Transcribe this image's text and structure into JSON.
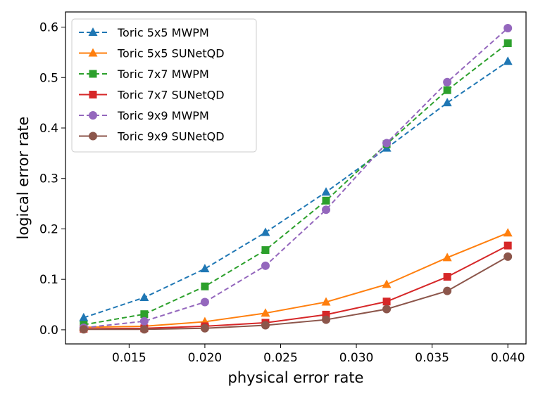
{
  "chart_data": {
    "type": "line",
    "title": "",
    "xlabel": "physical error rate",
    "ylabel": "logical error rate",
    "xlim": [
      0.0108,
      0.0412
    ],
    "ylim": [
      -0.028,
      0.63
    ],
    "x": [
      0.012,
      0.016,
      0.02,
      0.024,
      0.028,
      0.032,
      0.036,
      0.04
    ],
    "x_ticks": [
      0.015,
      0.02,
      0.025,
      0.03,
      0.035,
      0.04
    ],
    "x_tick_labels": [
      "0.015",
      "0.020",
      "0.025",
      "0.030",
      "0.035",
      "0.040"
    ],
    "y_ticks": [
      0.0,
      0.1,
      0.2,
      0.3,
      0.4,
      0.5,
      0.6
    ],
    "y_tick_labels": [
      "0.0",
      "0.1",
      "0.2",
      "0.3",
      "0.4",
      "0.5",
      "0.6"
    ],
    "legend_position": "top-left",
    "series": [
      {
        "name": "Toric 5x5 MWPM",
        "color": "#1f77b4",
        "dashed": true,
        "marker": "triangle",
        "values": [
          0.024,
          0.064,
          0.121,
          0.193,
          0.273,
          0.36,
          0.45,
          0.532
        ]
      },
      {
        "name": "Toric 5x5 SUNetQD",
        "color": "#ff7f0e",
        "dashed": false,
        "marker": "triangle",
        "values": [
          0.005,
          0.007,
          0.016,
          0.033,
          0.055,
          0.09,
          0.143,
          0.192
        ]
      },
      {
        "name": "Toric 7x7 MWPM",
        "color": "#2ca02c",
        "dashed": true,
        "marker": "square",
        "values": [
          0.01,
          0.031,
          0.086,
          0.158,
          0.256,
          0.368,
          0.475,
          0.568
        ]
      },
      {
        "name": "Toric 7x7 SUNetQD",
        "color": "#d62728",
        "dashed": false,
        "marker": "square",
        "values": [
          0.002,
          0.003,
          0.007,
          0.014,
          0.03,
          0.056,
          0.105,
          0.167
        ]
      },
      {
        "name": "Toric 9x9 MWPM",
        "color": "#9467bd",
        "dashed": true,
        "marker": "circle",
        "values": [
          0.004,
          0.017,
          0.055,
          0.127,
          0.238,
          0.37,
          0.491,
          0.598
        ]
      },
      {
        "name": "Toric 9x9 SUNetQD",
        "color": "#8c564b",
        "dashed": false,
        "marker": "circle",
        "values": [
          0.001,
          0.001,
          0.003,
          0.009,
          0.02,
          0.041,
          0.077,
          0.145
        ]
      }
    ]
  }
}
